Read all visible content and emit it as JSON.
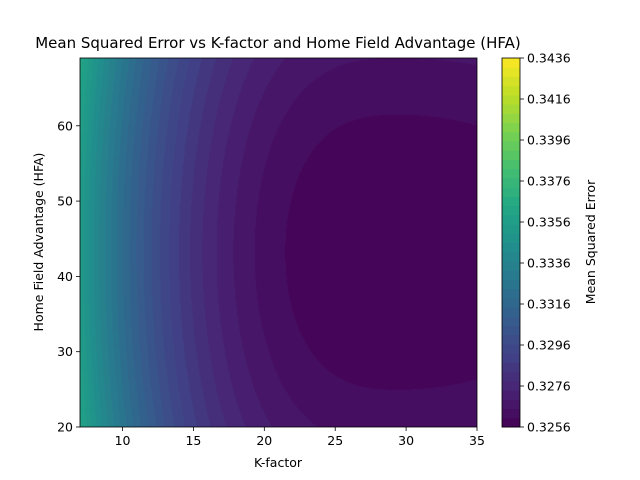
{
  "chart_data": {
    "type": "heatmap",
    "subtype": "filled-contour",
    "title": "Mean Squared Error vs K-factor and Home Field Advantage (HFA)",
    "xlabel": "K-factor",
    "ylabel": "Home Field Advantage (HFA)",
    "colorbar_label": "Mean Squared Error",
    "xlim": [
      7,
      35
    ],
    "ylim": [
      20,
      69
    ],
    "x_ticks": [
      10,
      15,
      20,
      25,
      30,
      35
    ],
    "y_ticks": [
      20,
      30,
      40,
      50,
      60
    ],
    "colorbar_ticks": [
      0.3256,
      0.3276,
      0.3296,
      0.3316,
      0.3336,
      0.3356,
      0.3376,
      0.3396,
      0.3416,
      0.3436
    ],
    "colorbar_range": [
      0.3256,
      0.3436
    ],
    "colormap": "viridis",
    "minimum": {
      "k_factor": 29.4,
      "hfa": 43.2,
      "mse": 0.3256
    },
    "grid": false
  }
}
